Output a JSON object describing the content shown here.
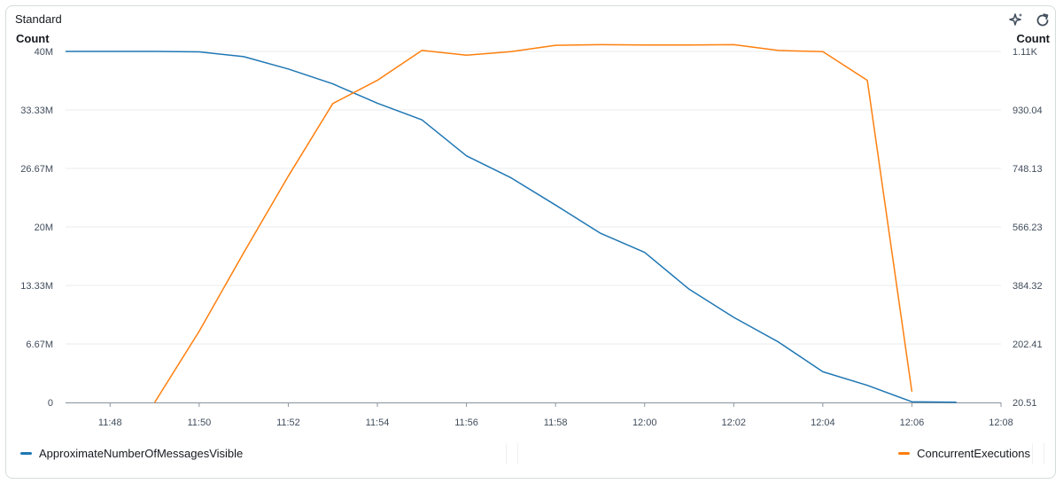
{
  "widget": {
    "title": "Standard",
    "left_unit": "Count",
    "right_unit": "Count"
  },
  "toolbar": {
    "icons": [
      "sparkle-icon",
      "refresh-icon"
    ]
  },
  "colors": {
    "series1": "#1f77b4",
    "series2": "#ff7f0e",
    "grid": "#e9ebed",
    "axis": "#414d5c"
  },
  "chart_data": {
    "type": "line",
    "x_ticks": [
      "11:48",
      "11:50",
      "11:52",
      "11:54",
      "11:56",
      "11:58",
      "12:00",
      "12:02",
      "12:04",
      "12:06",
      "12:08"
    ],
    "xlim": [
      "11:47",
      "12:08"
    ],
    "y_left": {
      "label": "Count",
      "tick_labels": [
        "0",
        "6.67M",
        "13.33M",
        "20M",
        "26.67M",
        "33.33M",
        "40M"
      ],
      "ylim": [
        0,
        40000000
      ]
    },
    "y_right": {
      "label": "Count",
      "tick_labels": [
        "20.51",
        "202.41",
        "384.32",
        "566.23",
        "748.13",
        "930.04",
        "1.11K"
      ],
      "ylim": [
        20.51,
        1111.94
      ]
    },
    "grid": true,
    "legend": "bottom",
    "series": [
      {
        "name": "ApproximateNumberOfMessagesVisible",
        "axis": "left",
        "x": [
          "11:47",
          "11:48",
          "11:49",
          "11:50",
          "11:51",
          "11:52",
          "11:53",
          "11:54",
          "11:55",
          "11:56",
          "11:57",
          "11:58",
          "11:59",
          "12:00",
          "12:01",
          "12:02",
          "12:03",
          "12:04",
          "12:05",
          "12:06",
          "12:07"
        ],
        "values": [
          40000000,
          40000000,
          40000000,
          39950000,
          39400000,
          38000000,
          36300000,
          34100000,
          32200000,
          28100000,
          25600000,
          22500000,
          19300000,
          17100000,
          12900000,
          9700000,
          6900000,
          3500000,
          1950000,
          80000,
          30000
        ]
      },
      {
        "name": "ConcurrentExecutions",
        "axis": "right",
        "x": [
          "11:49",
          "11:50",
          "11:51",
          "11:52",
          "11:53",
          "11:54",
          "11:55",
          "11:56",
          "11:57",
          "11:58",
          "11:59",
          "12:00",
          "12:01",
          "12:02",
          "12:03",
          "12:04",
          "12:05",
          "12:06"
        ],
        "values": [
          20.51,
          242,
          486,
          724,
          950,
          1022,
          1115,
          1100,
          1111,
          1131,
          1133,
          1132,
          1132,
          1133,
          1115,
          1111,
          1022,
          54
        ]
      }
    ]
  }
}
